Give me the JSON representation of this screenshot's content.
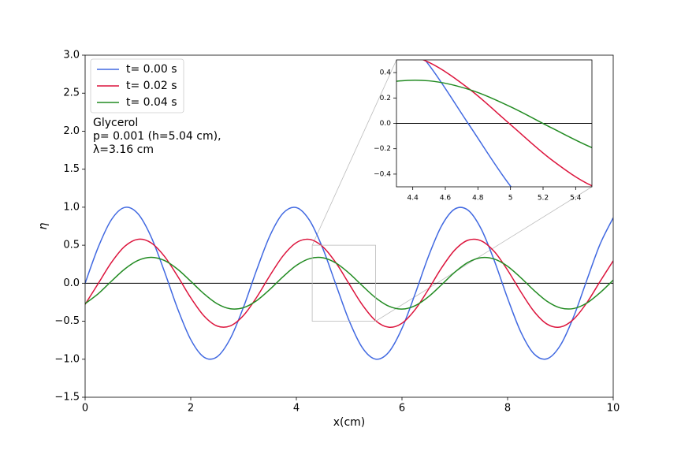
{
  "chart_data": {
    "type": "line",
    "xlabel": "x(cm)",
    "ylabel": "η",
    "annotation": [
      "Glycerol",
      "p= 0.001 (h=5.04 cm),",
      "λ=3.16 cm"
    ],
    "legend": "upper left",
    "x": [
      0,
      0.25,
      0.5,
      0.75,
      1,
      1.25,
      1.5,
      1.75,
      2,
      2.25,
      2.5,
      2.75,
      3,
      3.25,
      3.5,
      3.75,
      4,
      4.25,
      4.5,
      4.75,
      5,
      5.25,
      5.5,
      5.75,
      6,
      6.25,
      6.5,
      6.75,
      7,
      7.25,
      7.5,
      7.75,
      8,
      8.25,
      8.5,
      8.75,
      9,
      9.25,
      9.5,
      9.75,
      10
    ],
    "series": [
      {
        "name": "t= 0.00 s",
        "color": "#4169e1",
        "values": [
          0,
          0.477,
          0.838,
          0.997,
          0.914,
          0.61,
          0.158,
          -0.332,
          -0.741,
          -0.972,
          -0.967,
          -0.727,
          -0.313,
          0.178,
          0.626,
          0.922,
          0.995,
          0.827,
          0.459,
          -0.02,
          -0.494,
          -0.849,
          -0.998,
          -0.906,
          -0.594,
          -0.138,
          0.351,
          0.755,
          0.976,
          0.961,
          0.714,
          0.294,
          -0.198,
          -0.641,
          -0.929,
          -0.993,
          -0.816,
          -0.442,
          0.04,
          0.512,
          0.86
        ]
      },
      {
        "name": "t= 0.02 s",
        "color": "#dc143c",
        "values": [
          -0.278,
          -0.002,
          0.275,
          0.485,
          0.578,
          0.531,
          0.355,
          0.094,
          -0.191,
          -0.429,
          -0.563,
          -0.561,
          -0.423,
          -0.183,
          0.102,
          0.362,
          0.534,
          0.577,
          0.48,
          0.268,
          -0.01,
          -0.285,
          -0.492,
          -0.579,
          -0.526,
          -0.346,
          -0.082,
          0.202,
          0.437,
          0.566,
          0.558,
          0.415,
          0.172,
          -0.113,
          -0.371,
          -0.539,
          -0.576,
          -0.474,
          -0.257,
          0.022,
          0.295
        ]
      },
      {
        "name": "t= 0.04 s",
        "color": "#228b22",
        "values": [
          -0.269,
          -0.137,
          0.028,
          0.186,
          0.299,
          0.34,
          0.299,
          0.185,
          0.026,
          -0.138,
          -0.27,
          -0.336,
          -0.321,
          -0.228,
          -0.08,
          0.087,
          0.234,
          0.323,
          0.335,
          0.265,
          0.131,
          -0.034,
          -0.191,
          -0.302,
          -0.34,
          -0.295,
          -0.179,
          -0.02,
          0.145,
          0.274,
          0.337,
          0.318,
          0.223,
          0.073,
          -0.094,
          -0.239,
          -0.325,
          -0.333,
          -0.261,
          -0.125,
          0.041
        ]
      }
    ],
    "hline": 0,
    "xlim": [
      0,
      10
    ],
    "ylim": [
      -1.5,
      3
    ],
    "xticks": [
      0,
      2,
      4,
      6,
      8,
      10
    ],
    "yticks": [
      {
        "value": -1.5,
        "label": "−1.5"
      },
      {
        "value": -1,
        "label": "−1.0"
      },
      {
        "value": -0.5,
        "label": "−0.5"
      },
      {
        "value": 0,
        "label": "0.0"
      },
      {
        "value": 0.5,
        "label": "0.5"
      },
      {
        "value": 1,
        "label": "1.0"
      },
      {
        "value": 1.5,
        "label": "1.5"
      },
      {
        "value": 2,
        "label": "2.0"
      },
      {
        "value": 2.5,
        "label": "2.5"
      },
      {
        "value": 3,
        "label": "3.0"
      }
    ],
    "inset": {
      "xlim": [
        4.3,
        5.5
      ],
      "ylim": [
        -0.5,
        0.5
      ],
      "xticks": [
        4.4,
        4.6,
        4.8,
        5,
        5.2,
        5.4
      ],
      "yticks": [
        {
          "value": -0.4,
          "label": "−0.4"
        },
        {
          "value": -0.2,
          "label": "−0.2"
        },
        {
          "value": 0,
          "label": "0.0"
        },
        0.2,
        0.4
      ],
      "hline": 0
    }
  }
}
